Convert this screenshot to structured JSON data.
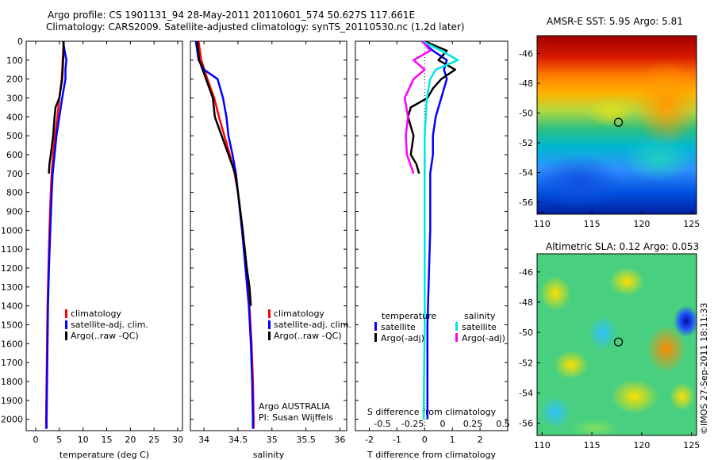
{
  "header": {
    "line1": "Argo profile: CS 1901131_94 28-May-2011 20110601_574 50.627S 117.661E",
    "line2": "Climatology: CARS2009. Satellite-adjusted climatology: synTS_20110530.nc (1.2d later)"
  },
  "colors": {
    "climatology": "#ff0000",
    "satellite_adj": "#0000ff",
    "argo": "#000000",
    "salinity_sat": "#00e5e5",
    "salinity_argo": "#ff00ff"
  },
  "chart_data": [
    {
      "type": "line",
      "id": "temperature",
      "xlabel": "temperature (deg C)",
      "ylabel": "",
      "xlim": [
        -2,
        31
      ],
      "ylim": [
        2060,
        0
      ],
      "xticks": [
        0,
        5,
        10,
        15,
        20,
        25,
        30
      ],
      "yticks": [
        0,
        100,
        200,
        300,
        400,
        500,
        600,
        700,
        800,
        900,
        1000,
        1100,
        1200,
        1300,
        1400,
        1500,
        1600,
        1700,
        1800,
        1900,
        2000
      ],
      "legend": [
        "climatology",
        "satellite-adj. clim.",
        "Argo(..raw -QC)"
      ],
      "series": [
        {
          "name": "climatology",
          "color": "#ff0000",
          "depth": [
            0,
            50,
            100,
            150,
            200,
            300,
            400,
            500,
            600,
            700,
            800,
            1000,
            1200,
            1400,
            1600,
            1800,
            2000,
            2050
          ],
          "values": [
            5.9,
            5.8,
            5.7,
            5.6,
            5.5,
            5.0,
            4.6,
            4.1,
            3.7,
            3.4,
            3.2,
            2.9,
            2.7,
            2.5,
            2.4,
            2.3,
            2.2,
            2.2
          ]
        },
        {
          "name": "satellite-adj. clim.",
          "color": "#0000ff",
          "depth": [
            0,
            50,
            100,
            150,
            200,
            300,
            400,
            500,
            600,
            700,
            800,
            1000,
            1200,
            1400,
            1600,
            1800,
            2000,
            2050
          ],
          "values": [
            5.8,
            6.1,
            6.5,
            6.3,
            6.3,
            5.6,
            5.0,
            4.4,
            4.0,
            3.6,
            3.4,
            3.1,
            2.8,
            2.6,
            2.5,
            2.4,
            2.3,
            2.3
          ]
        },
        {
          "name": "Argo(..raw -QC)",
          "color": "#000000",
          "depth": [
            0,
            50,
            100,
            150,
            200,
            300,
            350,
            400,
            500,
            600,
            650,
            700
          ],
          "values": [
            5.9,
            5.9,
            5.8,
            5.7,
            5.6,
            5.0,
            4.2,
            4.0,
            3.7,
            3.2,
            2.9,
            2.8
          ]
        }
      ]
    },
    {
      "type": "line",
      "id": "salinity",
      "xlabel": "salinity",
      "ylabel": "",
      "xlim": [
        33.8,
        36.1
      ],
      "ylim": [
        2060,
        0
      ],
      "xticks": [
        34,
        34.5,
        35,
        35.5,
        36
      ],
      "xticklabels": [
        "34",
        "34.5",
        "35",
        "35.5",
        "36"
      ],
      "legend": [
        "climatology",
        "satellite-adj. clim.",
        "Argo(..raw -QC)"
      ],
      "annotation": [
        "Argo AUSTRALIA",
        "PI: Susan Wijffels"
      ],
      "series": [
        {
          "name": "climatology",
          "color": "#ff0000",
          "depth": [
            0,
            100,
            200,
            300,
            400,
            500,
            600,
            700,
            800,
            1000,
            1200,
            1400,
            1600,
            1800,
            2000,
            2050
          ],
          "values": [
            33.92,
            33.96,
            34.05,
            34.15,
            34.22,
            34.3,
            34.38,
            34.45,
            34.5,
            34.56,
            34.62,
            34.67,
            34.7,
            34.72,
            34.73,
            34.73
          ]
        },
        {
          "name": "satellite-adj. clim.",
          "color": "#0000ff",
          "depth": [
            0,
            50,
            100,
            150,
            200,
            300,
            400,
            500,
            600,
            700,
            800,
            1000,
            1200,
            1400,
            1600,
            1800,
            2000,
            2050
          ],
          "values": [
            33.88,
            33.9,
            33.92,
            34.0,
            34.2,
            34.28,
            34.33,
            34.36,
            34.42,
            34.47,
            34.5,
            34.56,
            34.61,
            34.66,
            34.69,
            34.71,
            34.72,
            34.72
          ]
        },
        {
          "name": "Argo(..raw -QC)",
          "color": "#000000",
          "depth": [
            0,
            100,
            200,
            300,
            400,
            500,
            600,
            700,
            800,
            1000,
            1200,
            1300,
            1400
          ],
          "values": [
            33.9,
            33.93,
            34.03,
            34.13,
            34.16,
            34.26,
            34.36,
            34.46,
            34.5,
            34.57,
            34.63,
            34.67,
            34.69
          ]
        }
      ]
    },
    {
      "type": "line",
      "id": "difference",
      "xlabel": "T difference from climatology",
      "xlabel2": "S difference from climatology",
      "xlim": [
        -2.5,
        3
      ],
      "ylim": [
        2060,
        0
      ],
      "xticks": [
        -2,
        -1,
        0,
        1,
        2
      ],
      "xticks_top": [
        -0.5,
        -0.25,
        0,
        0.25,
        0.5
      ],
      "xticklabels_top": [
        "-0.5",
        "-0.25",
        "0",
        "0.25",
        "0.5"
      ],
      "legend_temperature_title": "temperature",
      "legend_salinity_title": "salinity",
      "legend_temperature": [
        "satellite",
        "Argo(-adj)"
      ],
      "legend_salinity": [
        "satellite",
        "Argo(-adj)"
      ],
      "series": [
        {
          "name": "temperature satellite",
          "color": "#0000ff",
          "depth": [
            0,
            50,
            100,
            150,
            200,
            300,
            400,
            500,
            600,
            700,
            800,
            1000,
            1500,
            2000
          ],
          "values": [
            -0.1,
            0.3,
            0.8,
            0.7,
            0.8,
            0.6,
            0.4,
            0.3,
            0.3,
            0.2,
            0.2,
            0.2,
            0.1,
            0.1
          ]
        },
        {
          "name": "temperature Argo(-adj)",
          "color": "#000000",
          "depth": [
            0,
            50,
            100,
            150,
            200,
            250,
            300,
            350,
            400,
            500,
            600,
            650,
            700
          ],
          "values": [
            0.0,
            0.8,
            0.5,
            1.1,
            0.6,
            0.3,
            0.1,
            -0.5,
            -0.6,
            -0.4,
            -0.5,
            -0.3,
            -0.2
          ]
        },
        {
          "name": "salinity satellite",
          "color": "#00e5e5",
          "depth": [
            0,
            50,
            100,
            150,
            200,
            300,
            400,
            500,
            600,
            800,
            1000,
            1500,
            2000
          ],
          "values": [
            -0.02,
            0.15,
            0.3,
            0.1,
            0.05,
            0.02,
            0.01,
            0.0,
            0.0,
            0.0,
            0.0,
            0.0,
            -0.01
          ]
        },
        {
          "name": "salinity Argo(-adj)",
          "color": "#ff00ff",
          "depth": [
            0,
            50,
            100,
            150,
            200,
            300,
            400,
            500,
            600,
            700
          ],
          "values": [
            -0.02,
            0.05,
            -0.1,
            0.0,
            -0.1,
            -0.18,
            -0.15,
            -0.17,
            -0.16,
            -0.1
          ]
        }
      ]
    }
  ],
  "maps": [
    {
      "id": "sst",
      "title": "AMSR-E SST: 5.95 Argo: 5.81",
      "xticks": [
        110,
        115,
        120,
        125
      ],
      "yticks": [
        -46,
        -48,
        -50,
        -52,
        -54,
        -56
      ],
      "xlim": [
        109.5,
        125.5
      ],
      "ylim": [
        -56.8,
        -44.8
      ],
      "marker": {
        "lon": 117.661,
        "lat": -50.627
      }
    },
    {
      "id": "sla",
      "title": "Altimetric SLA: 0.12 Argo: 0.053",
      "xticks": [
        110,
        115,
        120,
        125
      ],
      "yticks": [
        -46,
        -48,
        -50,
        -52,
        -54,
        -56
      ],
      "xlim": [
        109.5,
        125.5
      ],
      "ylim": [
        -56.8,
        -44.8
      ],
      "marker": {
        "lon": 117.661,
        "lat": -50.627
      }
    }
  ],
  "credit": "©IMOS 27-Sep-2011 18:11:33"
}
